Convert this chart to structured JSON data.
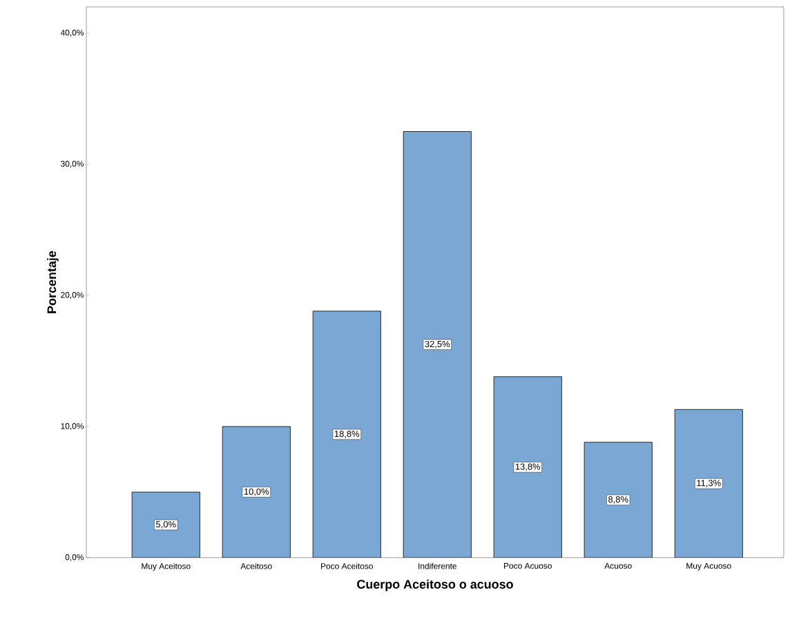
{
  "chart_data": {
    "type": "bar",
    "xlabel": "Cuerpo Aceitoso o acuoso",
    "ylabel": "Porcentaje",
    "categories": [
      "Muy Aceitoso",
      "Aceitoso",
      "Poco Aceitoso",
      "Indiferente",
      "Poco Acuoso",
      "Acuoso",
      "Muy Acuoso"
    ],
    "values": [
      5.0,
      10.0,
      18.8,
      32.5,
      13.8,
      8.8,
      11.3
    ],
    "value_labels": [
      "5,0%",
      "10,0%",
      "18,8%",
      "32,5%",
      "13,8%",
      "8,8%",
      "11,3%"
    ],
    "color": "#7ba7d4",
    "ylim": [
      0,
      42
    ],
    "yticks": [
      {
        "value": 0,
        "label": "0,0%"
      },
      {
        "value": 10,
        "label": "10,0%"
      },
      {
        "value": 20,
        "label": "20,0%"
      },
      {
        "value": 30,
        "label": "30,0%"
      },
      {
        "value": 40,
        "label": "40,0%"
      }
    ],
    "grid": false
  }
}
